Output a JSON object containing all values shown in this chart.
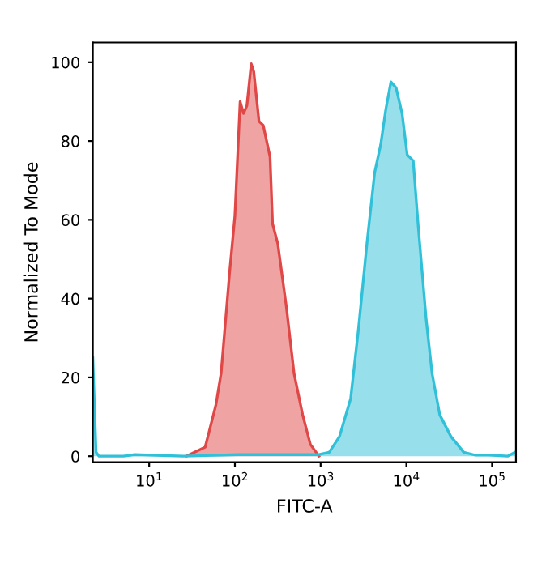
{
  "chart_data": {
    "type": "area",
    "xlabel": "FITC-A",
    "ylabel": "Normalized To Mode",
    "log": "x",
    "xlim": [
      2.2,
      190000
    ],
    "xticks": [
      {
        "value": 10,
        "label": "10$^{1}$"
      },
      {
        "value": 100,
        "label": "10$^{2}$"
      },
      {
        "value": 1000,
        "label": "10$^{3}$"
      },
      {
        "value": 10000,
        "label": "10$^{4}$"
      },
      {
        "value": 100000,
        "label": "10$^{5}$"
      }
    ],
    "ylim": [
      -1.5,
      105
    ],
    "yticks": [
      0,
      20,
      40,
      60,
      80,
      100
    ],
    "grid": false,
    "legend": false,
    "series": [
      {
        "color": "#e04848",
        "x": [
          27,
          45,
          60,
          69,
          87,
          100,
          115,
          126,
          138,
          155,
          166,
          191,
          214,
          257,
          275,
          316,
          398,
          490,
          617,
          759,
          955
        ],
        "values": [
          0,
          2.3,
          13,
          21,
          47,
          61,
          90,
          87,
          89,
          99.6,
          97.6,
          85,
          84,
          76,
          59,
          54,
          38,
          21,
          10.5,
          3,
          0
        ]
      },
      {
        "color": "#30c0d8",
        "x": [
          2.2,
          2.4,
          2.6,
          5,
          6.8,
          25,
          107,
          933,
          1259,
          1660,
          2239,
          2754,
          3467,
          4266,
          5012,
          5754,
          6607,
          7586,
          8913,
          10233,
          12023,
          13804,
          16982,
          19953,
          24547,
          33113,
          46774,
          63096,
          91201,
          151356,
          186209
        ],
        "values": [
          25,
          1,
          0,
          0,
          0.4,
          0,
          0.4,
          0.4,
          1,
          5,
          14.6,
          32,
          54,
          72,
          79,
          88,
          95,
          93.5,
          87,
          76.5,
          75,
          58,
          35,
          21,
          10.5,
          5,
          1,
          0.3,
          0.3,
          0,
          1
        ]
      }
    ]
  }
}
